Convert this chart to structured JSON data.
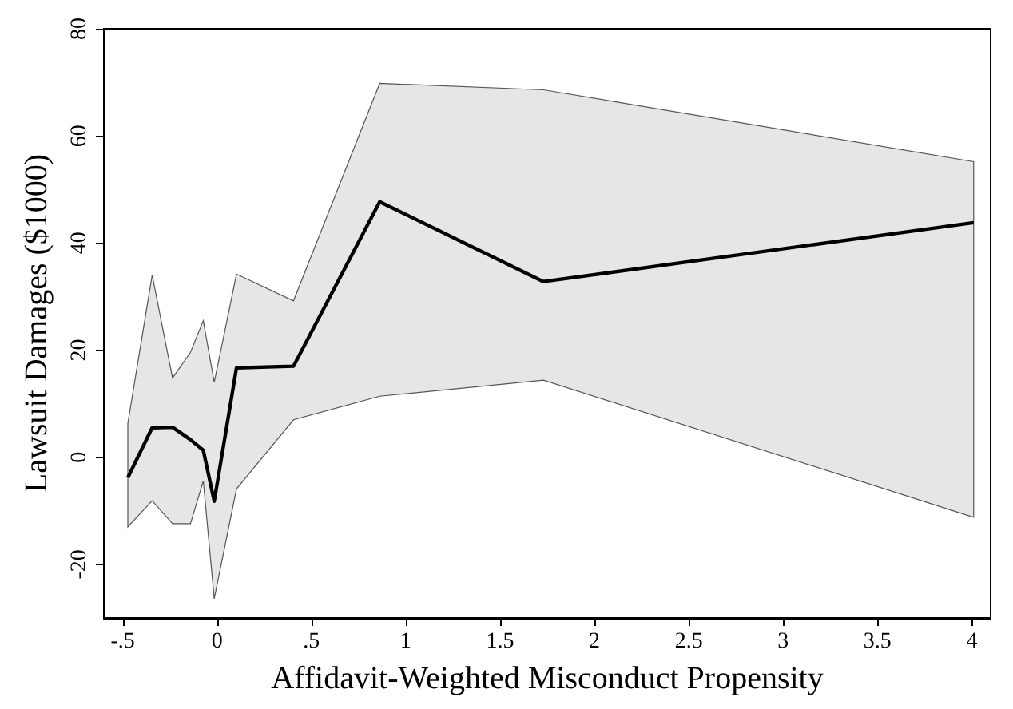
{
  "chart_data": {
    "type": "line",
    "xlabel": "Affidavit-Weighted Misconduct Propensity",
    "ylabel": "Lawsuit Damages ($1000)",
    "x": [
      -0.473,
      -0.344,
      -0.236,
      -0.141,
      -0.073,
      -0.015,
      0.103,
      0.405,
      0.862,
      1.73,
      4.01
    ],
    "series": [
      {
        "color": "#000000",
        "values": [
          -3.8,
          5.5,
          5.6,
          3.3,
          1.3,
          -8.2,
          16.7,
          17,
          47.7,
          32.8,
          43.8
        ],
        "lower": [
          -13,
          -8.1,
          -12.4,
          -12.4,
          -4.4,
          -26.4,
          -5.9,
          7,
          11.4,
          14.4,
          -11.2
        ],
        "upper": [
          6.3,
          34,
          14.8,
          19.6,
          25.5,
          14,
          34.2,
          29.2,
          69.8,
          68.6,
          55.2
        ]
      }
    ],
    "xlim": [
      -0.6,
      4.1
    ],
    "xticks": [
      {
        "value": -0.5,
        "label": "-.5"
      },
      0,
      {
        "value": 0.5,
        "label": ".5"
      },
      1,
      1.5,
      2,
      2.5,
      3,
      3.5,
      4
    ],
    "ylim": [
      -30,
      80
    ],
    "yticks": [
      -20,
      0,
      20,
      40,
      60,
      80
    ],
    "grid": false,
    "marker": "none",
    "line_style": "solid"
  }
}
